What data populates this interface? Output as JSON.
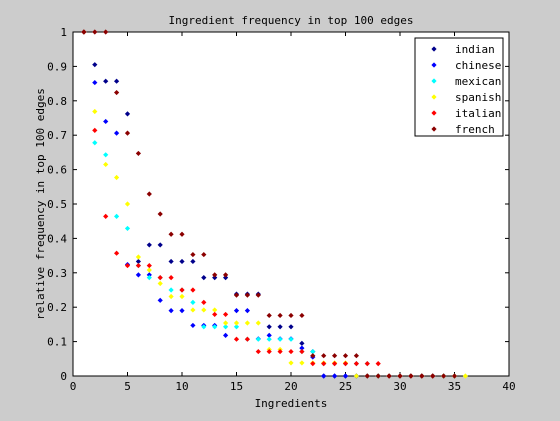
{
  "chart_data": {
    "type": "scatter",
    "title": "Ingredient frequency in top 100 edges",
    "xlabel": "Ingredients",
    "ylabel": "relative frequency in top 100 edges",
    "xlim": [
      0,
      40
    ],
    "ylim": [
      0,
      1
    ],
    "xticks": [
      "0",
      "5",
      "10",
      "15",
      "20",
      "25",
      "30",
      "35",
      "40"
    ],
    "yticks": [
      "0",
      "0.1",
      "0.2",
      "0.3",
      "0.4",
      "0.5",
      "0.6",
      "0.7",
      "0.8",
      "0.9",
      "1"
    ],
    "grid": false,
    "legend_position": "top-right",
    "series": [
      {
        "name": "indian",
        "color": "#00008b",
        "x": [
          1,
          2,
          3,
          4,
          5,
          6,
          7,
          8,
          9,
          10,
          11,
          12,
          13,
          14,
          15,
          16,
          17,
          18,
          19,
          20,
          21,
          22,
          23,
          24,
          25,
          26,
          27,
          28,
          29,
          30,
          31,
          32,
          33,
          34,
          35
        ],
        "y": [
          1,
          0.905,
          0.857,
          0.857,
          0.762,
          0.333,
          0.381,
          0.381,
          0.333,
          0.333,
          0.333,
          0.286,
          0.286,
          0.286,
          0.238,
          0.238,
          0.238,
          0.143,
          0.143,
          0.143,
          0.095,
          0.071,
          0,
          0,
          0,
          0,
          0,
          0,
          0,
          0,
          0,
          0,
          0,
          0,
          0
        ]
      },
      {
        "name": "chinese",
        "color": "#0000ff",
        "x": [
          1,
          2,
          3,
          4,
          5,
          6,
          7,
          8,
          9,
          10,
          11,
          12,
          13,
          14,
          15,
          16,
          17,
          18,
          19,
          20,
          21,
          22,
          23,
          24,
          25,
          26,
          27,
          28,
          29,
          30,
          31,
          32,
          33,
          34,
          35
        ],
        "y": [
          1,
          0.853,
          0.74,
          0.706,
          0.324,
          0.294,
          0.294,
          0.22,
          0.19,
          0.19,
          0.147,
          0.147,
          0.147,
          0.118,
          0.19,
          0.19,
          0.108,
          0.118,
          0.108,
          0.108,
          0.081,
          0.055,
          0,
          0,
          0,
          0,
          0,
          0,
          0,
          0,
          0,
          0,
          0,
          0,
          0
        ]
      },
      {
        "name": "mexican",
        "color": "#00ffff",
        "x": [
          1,
          2,
          3,
          4,
          5,
          6,
          7,
          8,
          9,
          10,
          11,
          12,
          13,
          14,
          15,
          16,
          17,
          18,
          19,
          20,
          21,
          22,
          23,
          24,
          25,
          26,
          27,
          28,
          29,
          30,
          31,
          32,
          33,
          34,
          35
        ],
        "y": [
          1,
          0.678,
          0.643,
          0.464,
          0.429,
          0.321,
          0.286,
          0.286,
          0.25,
          0.25,
          0.214,
          0.143,
          0.143,
          0.143,
          0.143,
          0.107,
          0.107,
          0.107,
          0.107,
          0.107,
          0.071,
          0.071,
          0.036,
          0.036,
          0.036,
          0.036,
          0.036,
          0,
          0,
          0,
          0,
          0,
          0,
          0,
          0
        ]
      },
      {
        "name": "spanish",
        "color": "#ffff00",
        "x": [
          1,
          2,
          3,
          4,
          5,
          6,
          7,
          8,
          9,
          10,
          11,
          12,
          13,
          14,
          15,
          16,
          17,
          18,
          19,
          20,
          21,
          22,
          23,
          24,
          25,
          26,
          27,
          28,
          29,
          30,
          31,
          32,
          33,
          34,
          35,
          36
        ],
        "y": [
          1,
          0.769,
          0.615,
          0.577,
          0.5,
          0.346,
          0.308,
          0.269,
          0.231,
          0.231,
          0.192,
          0.192,
          0.192,
          0.154,
          0.154,
          0.154,
          0.154,
          0.077,
          0.077,
          0.038,
          0.038,
          0.038,
          0.038,
          0.038,
          0.038,
          0,
          0,
          0,
          0,
          0,
          0,
          0,
          0,
          0,
          0,
          0
        ]
      },
      {
        "name": "italian",
        "color": "#ff0000",
        "x": [
          1,
          2,
          3,
          4,
          5,
          6,
          7,
          8,
          9,
          10,
          11,
          12,
          13,
          14,
          15,
          16,
          17,
          18,
          19,
          20,
          21,
          22,
          23,
          24,
          25,
          26,
          27,
          28,
          29,
          30,
          31,
          32,
          33
        ],
        "y": [
          1,
          0.714,
          0.464,
          0.357,
          0.321,
          0.321,
          0.321,
          0.286,
          0.286,
          0.25,
          0.25,
          0.214,
          0.179,
          0.179,
          0.107,
          0.107,
          0.071,
          0.071,
          0.071,
          0.071,
          0.071,
          0.036,
          0.036,
          0.036,
          0.036,
          0.036,
          0.036,
          0.036,
          0,
          0,
          0,
          0,
          0
        ]
      },
      {
        "name": "french",
        "color": "#8b0000",
        "x": [
          1,
          2,
          3,
          4,
          5,
          6,
          7,
          8,
          9,
          10,
          11,
          12,
          13,
          14,
          15,
          16,
          17,
          18,
          19,
          20,
          21,
          22,
          23,
          24,
          25,
          26,
          27,
          28,
          29,
          30,
          31,
          32,
          33,
          34,
          35
        ],
        "y": [
          1,
          1,
          1,
          0.824,
          0.706,
          0.647,
          0.529,
          0.471,
          0.412,
          0.412,
          0.353,
          0.353,
          0.294,
          0.294,
          0.235,
          0.235,
          0.235,
          0.176,
          0.176,
          0.176,
          0.176,
          0.059,
          0.059,
          0.059,
          0.059,
          0.059,
          0,
          0,
          0,
          0,
          0,
          0,
          0,
          0,
          0
        ]
      }
    ]
  }
}
